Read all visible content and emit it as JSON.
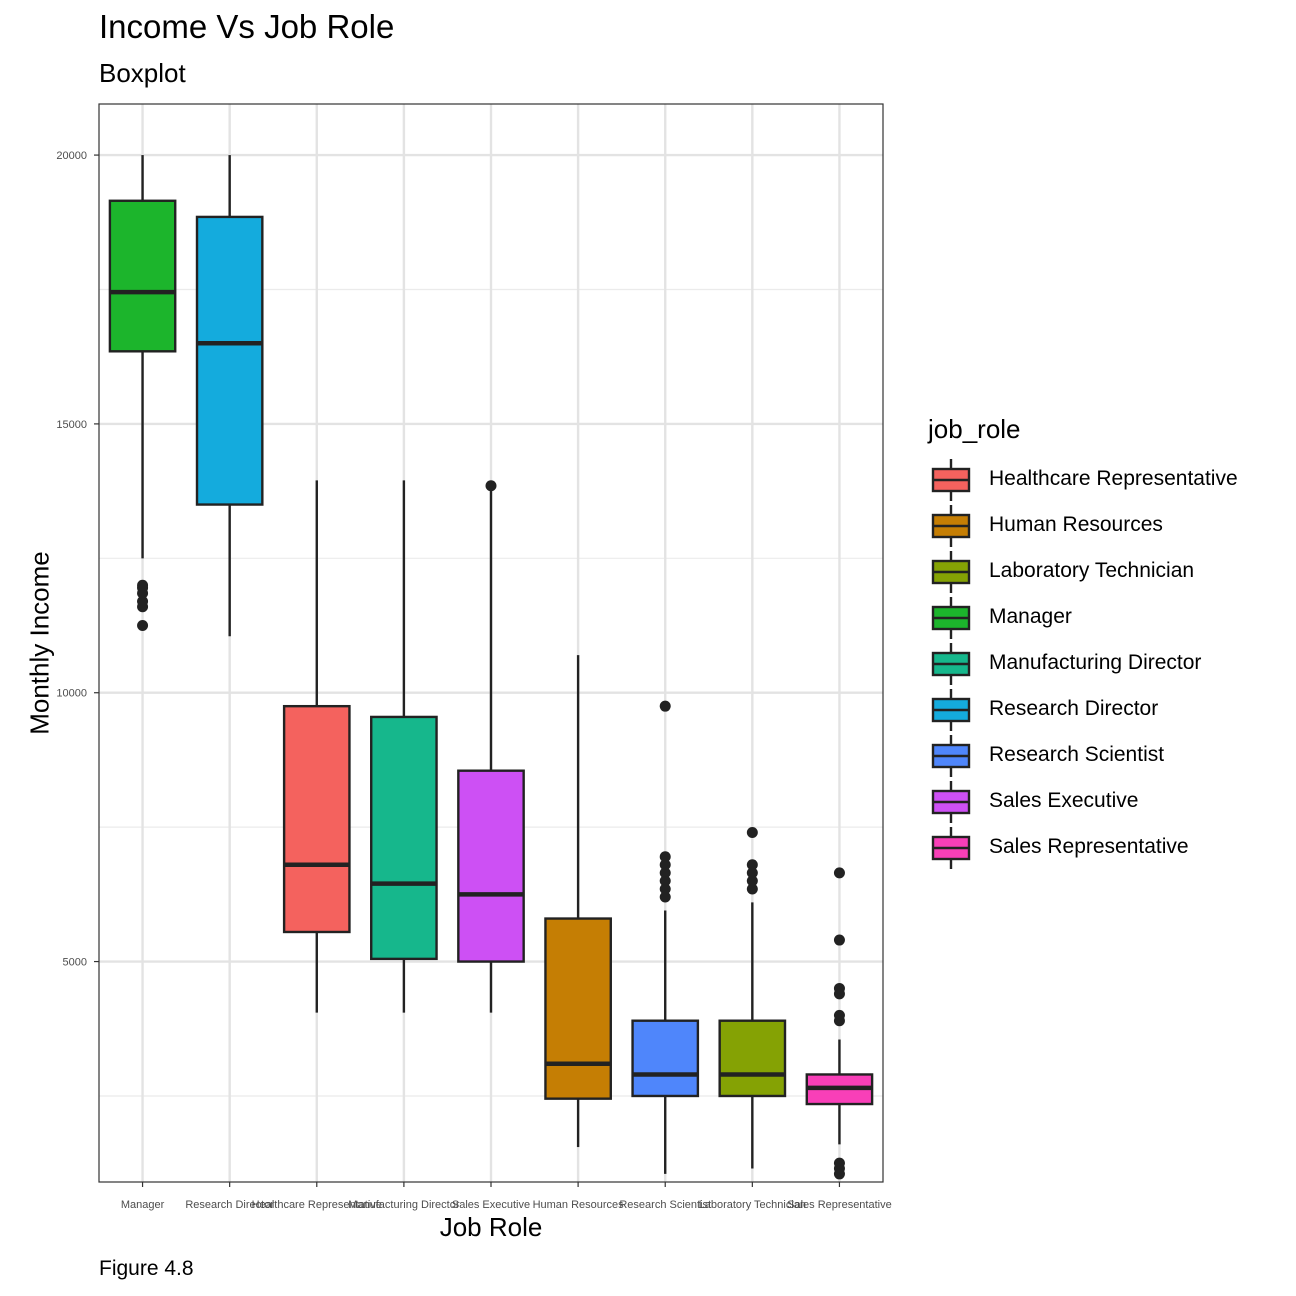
{
  "chart_data": {
    "type": "boxplot",
    "title": "Income Vs Job Role",
    "subtitle": "Boxplot",
    "caption": "Figure 4.8",
    "xlabel": "Job Role",
    "ylabel": "Monthly Income",
    "ylim": [
      900,
      20950
    ],
    "yticks": [
      5000,
      10000,
      15000,
      20000
    ],
    "grid": true,
    "legend_title": "job_role",
    "legend_position": "right",
    "categories": [
      "Manager",
      "Research Director",
      "Healthcare Representative",
      "Manufacturing Director",
      "Sales Executive",
      "Human Resources",
      "Research Scientist",
      "Laboratory Technician",
      "Sales Representative"
    ],
    "boxes": [
      {
        "name": "Manager",
        "color": "#1cb52c",
        "min": 12500,
        "q1": 16350,
        "median": 17450,
        "q3": 19150,
        "max": 20000,
        "outliers": [
          11250,
          11600,
          11700,
          11850,
          11950,
          12000
        ]
      },
      {
        "name": "Research Director",
        "color": "#14abdd",
        "min": 11050,
        "q1": 13500,
        "median": 16500,
        "q3": 18850,
        "max": 20000,
        "outliers": []
      },
      {
        "name": "Healthcare Representative",
        "color": "#f4625e",
        "min": 4050,
        "q1": 5550,
        "median": 6800,
        "q3": 9750,
        "max": 13950,
        "outliers": []
      },
      {
        "name": "Manufacturing Director",
        "color": "#16b78c",
        "min": 4050,
        "q1": 5050,
        "median": 6450,
        "q3": 9550,
        "max": 13950,
        "outliers": []
      },
      {
        "name": "Sales Executive",
        "color": "#cd50f4",
        "min": 4050,
        "q1": 5000,
        "median": 6250,
        "q3": 8550,
        "max": 13850,
        "outliers": [
          13850
        ]
      },
      {
        "name": "Human Resources",
        "color": "#c57e04",
        "min": 1550,
        "q1": 2450,
        "median": 3100,
        "q3": 5800,
        "max": 10700,
        "outliers": []
      },
      {
        "name": "Research Scientist",
        "color": "#4f86fb",
        "min": 1050,
        "q1": 2500,
        "median": 2900,
        "q3": 3900,
        "max": 5950,
        "outliers": [
          6200,
          6350,
          6500,
          6650,
          6800,
          6950,
          9750
        ]
      },
      {
        "name": "Laboratory Technician",
        "color": "#85a204",
        "min": 1150,
        "q1": 2500,
        "median": 2900,
        "q3": 3900,
        "max": 6100,
        "outliers": [
          6350,
          6500,
          6650,
          6800,
          7400
        ]
      },
      {
        "name": "Sales Representative",
        "color": "#f83fb8",
        "min": 1600,
        "q1": 2350,
        "median": 2650,
        "q3": 2900,
        "max": 3550,
        "outliers": [
          1050,
          1150,
          1250,
          3900,
          4000,
          4400,
          4500,
          5400,
          6650
        ]
      }
    ],
    "legend_order": [
      "Healthcare Representative",
      "Human Resources",
      "Laboratory Technician",
      "Manager",
      "Manufacturing Director",
      "Research Director",
      "Research Scientist",
      "Sales Executive",
      "Sales Representative"
    ]
  }
}
